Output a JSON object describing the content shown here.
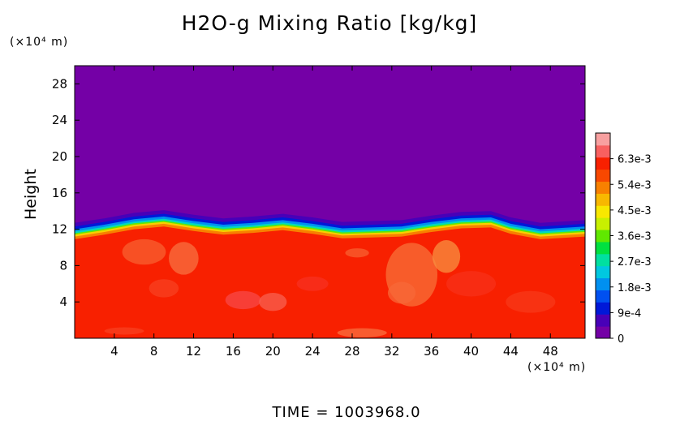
{
  "chart_data": {
    "type": "heatmap",
    "title": "H2O-g Mixing Ratio [kg/kg]",
    "ylabel": "Height",
    "y_unit": "(×10⁴ m)",
    "x_unit": "(×10⁴ m)",
    "xlim": [
      0,
      51.5
    ],
    "ylim": [
      0,
      30
    ],
    "x_ticks": [
      "4",
      "8",
      "12",
      "16",
      "20",
      "24",
      "28",
      "32",
      "36",
      "40",
      "44",
      "48"
    ],
    "y_ticks": [
      "4",
      "8",
      "12",
      "16",
      "20",
      "24",
      "28"
    ],
    "colorbar": {
      "labels": [
        "0",
        "9e-4",
        "1.8e-3",
        "2.7e-3",
        "3.6e-3",
        "4.5e-3",
        "5.4e-3",
        "6.3e-3"
      ],
      "range": [
        0,
        0.0072
      ],
      "colors": [
        "#7400a6",
        "#4800b8",
        "#0018d8",
        "#0050f0",
        "#0090f0",
        "#00c8e0",
        "#00e0a0",
        "#00e040",
        "#60e800",
        "#c8f000",
        "#f8e800",
        "#f8b800",
        "#f88000",
        "#f84800",
        "#f82000",
        "#f86060",
        "#f8a0a0"
      ]
    },
    "field_summary": {
      "upper_layer_value": 0,
      "lower_layer_value": 0.0061,
      "transition_height": 11.5,
      "interface_heights_at_x": [
        [
          0,
          11.3
        ],
        [
          3,
          11.8
        ],
        [
          6,
          12.4
        ],
        [
          9,
          12.7
        ],
        [
          12,
          12.2
        ],
        [
          15,
          11.8
        ],
        [
          18,
          12.0
        ],
        [
          21,
          12.3
        ],
        [
          24,
          11.9
        ],
        [
          27,
          11.4
        ],
        [
          30,
          11.5
        ],
        [
          33,
          11.6
        ],
        [
          36,
          12.1
        ],
        [
          39,
          12.5
        ],
        [
          42,
          12.6
        ],
        [
          44,
          11.9
        ],
        [
          47,
          11.3
        ],
        [
          51.5,
          11.6
        ]
      ]
    },
    "footer": "TIME  =  1003968.0"
  }
}
